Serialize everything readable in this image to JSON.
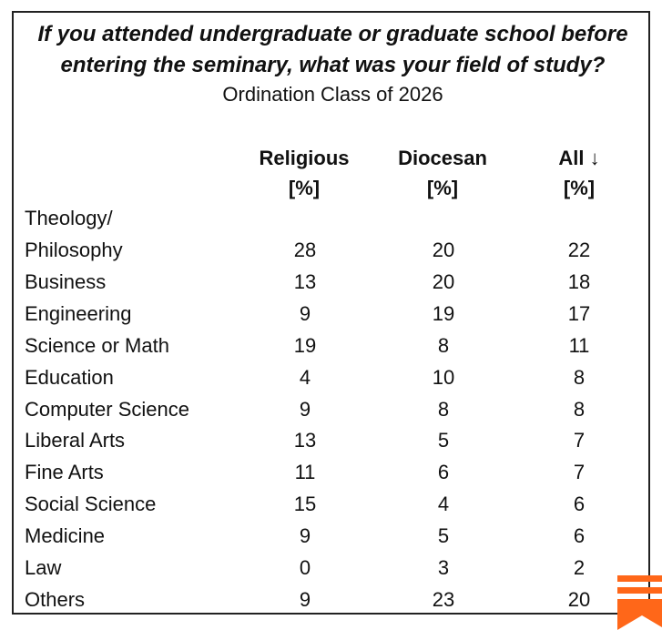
{
  "chart_data": {
    "type": "table",
    "title": "If you attended undergraduate or graduate school before entering the seminary, what was your field of study?",
    "subtitle": "Ordination Class of 2026",
    "columns": [
      {
        "name": "Religious",
        "unit": "[%]"
      },
      {
        "name": "Diocesan",
        "unit": "[%]"
      },
      {
        "name": "All ↓",
        "unit": "[%]"
      }
    ],
    "rows": [
      {
        "label": "Theology/ Philosophy",
        "label_lines": [
          "Theology/",
          "Philosophy"
        ],
        "values": [
          28,
          20,
          22
        ]
      },
      {
        "label": "Business",
        "label_lines": [
          "Business"
        ],
        "values": [
          13,
          20,
          18
        ]
      },
      {
        "label": "Engineering",
        "label_lines": [
          "Engineering"
        ],
        "values": [
          9,
          19,
          17
        ]
      },
      {
        "label": "Science or Math",
        "label_lines": [
          "Science or Math"
        ],
        "values": [
          19,
          8,
          11
        ]
      },
      {
        "label": "Education",
        "label_lines": [
          "Education"
        ],
        "values": [
          4,
          10,
          8
        ]
      },
      {
        "label": "Computer Science",
        "label_lines": [
          "Computer Science"
        ],
        "values": [
          9,
          8,
          8
        ]
      },
      {
        "label": "Liberal Arts",
        "label_lines": [
          "Liberal Arts"
        ],
        "values": [
          13,
          5,
          7
        ]
      },
      {
        "label": "Fine Arts",
        "label_lines": [
          "Fine Arts"
        ],
        "values": [
          11,
          6,
          7
        ]
      },
      {
        "label": "Social Science",
        "label_lines": [
          "Social Science"
        ],
        "values": [
          15,
          4,
          6
        ]
      },
      {
        "label": "Medicine",
        "label_lines": [
          "Medicine"
        ],
        "values": [
          9,
          5,
          6
        ]
      },
      {
        "label": "Law",
        "label_lines": [
          "Law"
        ],
        "values": [
          0,
          3,
          2
        ]
      },
      {
        "label": "Others",
        "label_lines": [
          "Others"
        ],
        "values": [
          9,
          23,
          20
        ]
      }
    ]
  },
  "logo": {
    "icon": "substack-bookmark-icon",
    "color": "#ff6719"
  }
}
